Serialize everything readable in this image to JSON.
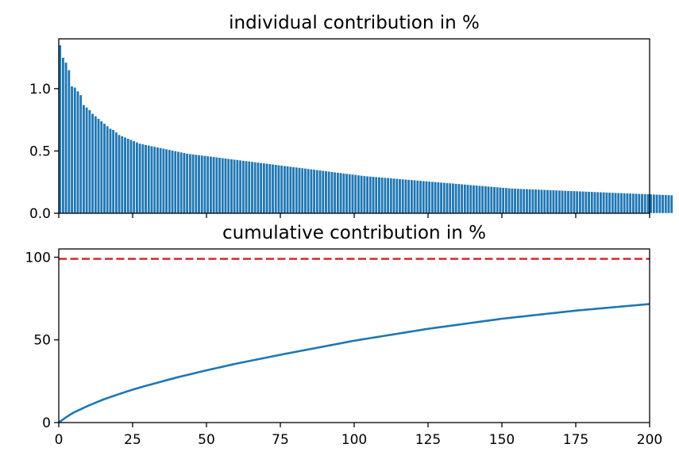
{
  "chart_data": [
    {
      "type": "bar",
      "title": "individual contribution in %",
      "xlabel": "",
      "ylabel": "",
      "xlim": [
        0,
        200
      ],
      "ylim": [
        0,
        1.4
      ],
      "yticks": [
        "0.0",
        "0.5",
        "1.0"
      ],
      "x_tick_labels_shown": false,
      "values": [
        1.35,
        1.25,
        1.21,
        1.15,
        1.02,
        1.01,
        0.98,
        0.95,
        0.87,
        0.85,
        0.83,
        0.8,
        0.78,
        0.76,
        0.74,
        0.72,
        0.7,
        0.68,
        0.67,
        0.65,
        0.63,
        0.62,
        0.61,
        0.6,
        0.59,
        0.58,
        0.57,
        0.56,
        0.555,
        0.55,
        0.545,
        0.54,
        0.535,
        0.53,
        0.525,
        0.52,
        0.515,
        0.51,
        0.505,
        0.5,
        0.495,
        0.49,
        0.485,
        0.48,
        0.477,
        0.474,
        0.471,
        0.468,
        0.465,
        0.462,
        0.459,
        0.456,
        0.453,
        0.45,
        0.447,
        0.444,
        0.441,
        0.438,
        0.435,
        0.432,
        0.429,
        0.426,
        0.423,
        0.42,
        0.417,
        0.414,
        0.411,
        0.408,
        0.405,
        0.402,
        0.399,
        0.396,
        0.393,
        0.39,
        0.387,
        0.384,
        0.381,
        0.378,
        0.375,
        0.372,
        0.369,
        0.366,
        0.363,
        0.36,
        0.357,
        0.354,
        0.351,
        0.348,
        0.345,
        0.342,
        0.339,
        0.336,
        0.333,
        0.33,
        0.327,
        0.324,
        0.321,
        0.318,
        0.315,
        0.312,
        0.309,
        0.306,
        0.303,
        0.3,
        0.298,
        0.296,
        0.294,
        0.292,
        0.29,
        0.288,
        0.286,
        0.284,
        0.282,
        0.28,
        0.278,
        0.276,
        0.274,
        0.272,
        0.27,
        0.268,
        0.266,
        0.264,
        0.262,
        0.26,
        0.258,
        0.256,
        0.254,
        0.252,
        0.25,
        0.248,
        0.246,
        0.244,
        0.242,
        0.24,
        0.238,
        0.236,
        0.234,
        0.232,
        0.23,
        0.228,
        0.226,
        0.224,
        0.222,
        0.22,
        0.218,
        0.216,
        0.214,
        0.212,
        0.21,
        0.208,
        0.206,
        0.204,
        0.202,
        0.2,
        0.199,
        0.198,
        0.197,
        0.196,
        0.195,
        0.194,
        0.193,
        0.192,
        0.191,
        0.19,
        0.189,
        0.188,
        0.187,
        0.186,
        0.185,
        0.184,
        0.183,
        0.182,
        0.181,
        0.18,
        0.179,
        0.178,
        0.177,
        0.176,
        0.175,
        0.174,
        0.173,
        0.172,
        0.171,
        0.17,
        0.169,
        0.168,
        0.167,
        0.166,
        0.165,
        0.164,
        0.163,
        0.162,
        0.161,
        0.16,
        0.159,
        0.158,
        0.157,
        0.156,
        0.155,
        0.154,
        0.153,
        0.152,
        0.151,
        0.15,
        0.149,
        0.148,
        0.147,
        0.146
      ],
      "color": "#1f77b4"
    },
    {
      "type": "line",
      "title": "cumulative contribution in %",
      "xlabel": "",
      "ylabel": "",
      "xlim": [
        0,
        200
      ],
      "ylim": [
        0,
        105
      ],
      "xticks": [
        "0",
        "25",
        "50",
        "75",
        "100",
        "125",
        "150",
        "175",
        "200"
      ],
      "yticks": [
        "0",
        "50",
        "100"
      ],
      "series": [
        {
          "x": [
            0,
            1,
            2,
            3,
            4,
            5,
            10,
            15,
            20,
            25,
            30,
            40,
            50,
            60,
            75,
            100,
            125,
            150,
            175,
            200
          ],
          "y": [
            0,
            1.35,
            2.6,
            3.8,
            4.95,
            6.0,
            10.2,
            13.9,
            17.0,
            19.9,
            22.5,
            27.3,
            31.6,
            35.6,
            41.0,
            49.5,
            56.7,
            62.8,
            67.7,
            71.7
          ],
          "color": "#1f77b4",
          "style": "solid"
        },
        {
          "x": [
            0,
            200
          ],
          "y": [
            99,
            99
          ],
          "color": "#d62728",
          "style": "dashed"
        }
      ]
    }
  ]
}
